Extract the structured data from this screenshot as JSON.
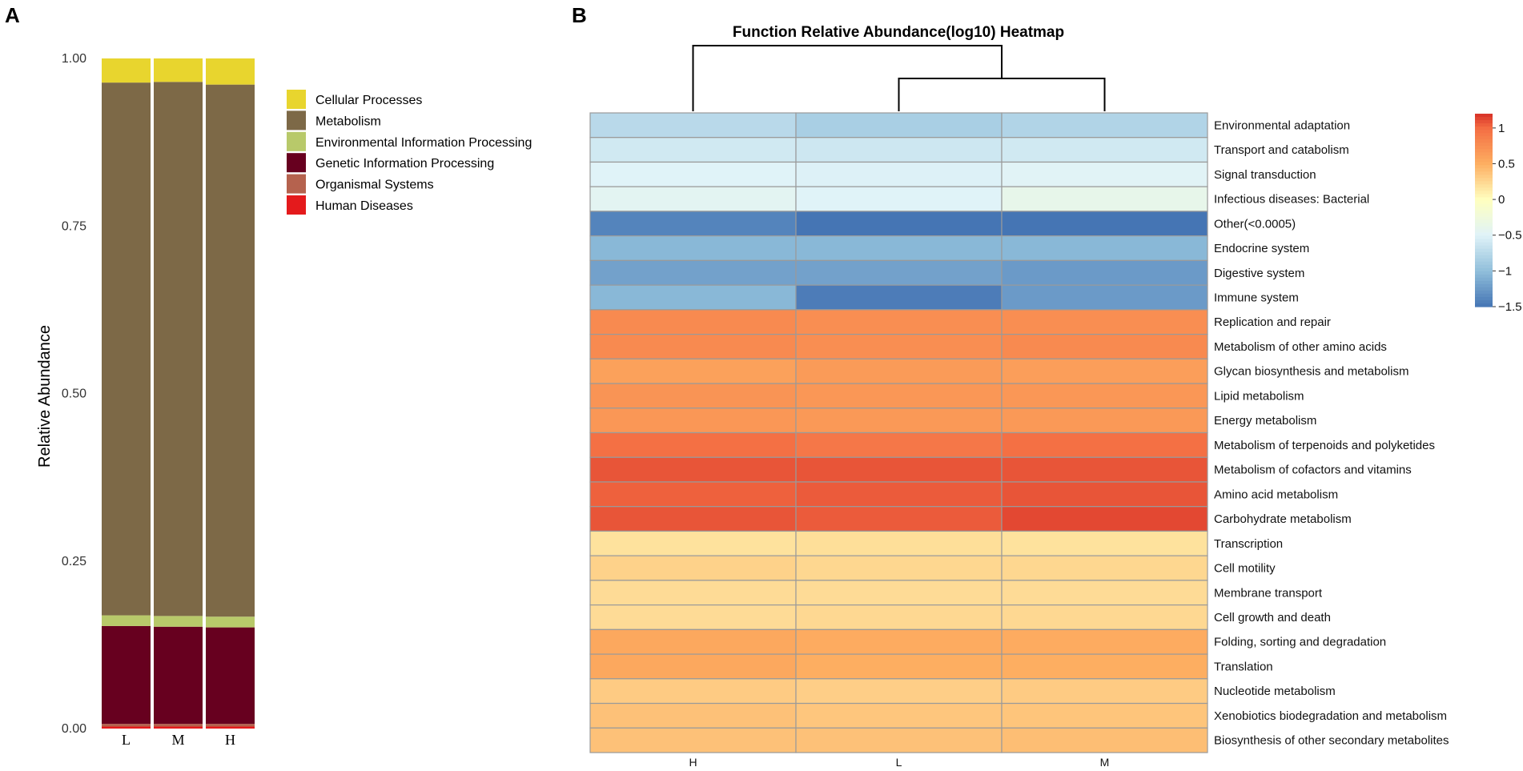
{
  "panels": {
    "a_label": "A",
    "b_label": "B"
  },
  "chart_data": [
    {
      "type": "bar",
      "stacked": true,
      "title": "",
      "xlabel": "",
      "ylabel": "Relative Abundance",
      "ylim": [
        0,
        1
      ],
      "yticks": [
        "0.00",
        "0.25",
        "0.50",
        "0.75",
        "1.00"
      ],
      "categories": [
        "L",
        "M",
        "H"
      ],
      "legend_position": "right",
      "series": [
        {
          "name": "Human Diseases",
          "color": "#E41A1C",
          "values": [
            0.003,
            0.003,
            0.003
          ]
        },
        {
          "name": "Organismal Systems",
          "color": "#B5624E",
          "values": [
            0.004,
            0.004,
            0.004
          ]
        },
        {
          "name": "Genetic Information Processing",
          "color": "#67001F",
          "values": [
            0.146,
            0.145,
            0.144
          ]
        },
        {
          "name": "Environmental Information Processing",
          "color": "#B8C96A",
          "values": [
            0.016,
            0.016,
            0.016
          ]
        },
        {
          "name": "Metabolism",
          "color": "#7D6947",
          "values": [
            0.795,
            0.797,
            0.794
          ]
        },
        {
          "name": "Cellular Processes",
          "color": "#E8D52E",
          "values": [
            0.036,
            0.035,
            0.039
          ]
        }
      ],
      "legend_order": [
        "Cellular Processes",
        "Metabolism",
        "Environmental Information Processing",
        "Genetic Information Processing",
        "Organismal Systems",
        "Human Diseases"
      ]
    },
    {
      "type": "heatmap",
      "title": "Function Relative Abundance(log10) Heatmap",
      "columns": [
        "H",
        "L",
        "M"
      ],
      "dendrogram": "H | (L, M)",
      "colorbar": {
        "min": -1.5,
        "max": 1.2,
        "ticks": [
          "1",
          "0.5",
          "0",
          "−0.5",
          "−1",
          "−1.5"
        ],
        "tick_values": [
          1,
          0.5,
          0,
          -0.5,
          -1,
          -1.5
        ]
      },
      "rows": [
        {
          "label": "Environmental adaptation",
          "values": [
            -0.75,
            -0.85,
            -0.8
          ]
        },
        {
          "label": "Transport and catabolism",
          "values": [
            -0.6,
            -0.62,
            -0.6
          ]
        },
        {
          "label": "Signal transduction",
          "values": [
            -0.5,
            -0.52,
            -0.48
          ]
        },
        {
          "label": "Infectious diseases: Bacterial",
          "values": [
            -0.45,
            -0.5,
            -0.38
          ]
        },
        {
          "label": "Other(<0.0005)",
          "values": [
            -1.4,
            -1.5,
            -1.5
          ]
        },
        {
          "label": "Endocrine system",
          "values": [
            -1.05,
            -1.05,
            -1.05
          ]
        },
        {
          "label": "Digestive system",
          "values": [
            -1.2,
            -1.2,
            -1.25
          ]
        },
        {
          "label": "Immune system",
          "values": [
            -1.05,
            -1.45,
            -1.25
          ]
        },
        {
          "label": "Replication and repair",
          "values": [
            0.78,
            0.75,
            0.75
          ]
        },
        {
          "label": "Metabolism of other amino acids",
          "values": [
            0.78,
            0.75,
            0.78
          ]
        },
        {
          "label": "Glycan biosynthesis and metabolism",
          "values": [
            0.6,
            0.65,
            0.62
          ]
        },
        {
          "label": "Lipid metabolism",
          "values": [
            0.7,
            0.68,
            0.68
          ]
        },
        {
          "label": "Energy metabolism",
          "values": [
            0.68,
            0.66,
            0.66
          ]
        },
        {
          "label": "Metabolism of terpenoids and polyketides",
          "values": [
            0.98,
            0.92,
            0.98
          ]
        },
        {
          "label": "Metabolism of cofactors and vitamins",
          "values": [
            1.08,
            1.08,
            1.08
          ]
        },
        {
          "label": "Amino acid metabolism",
          "values": [
            1.04,
            1.06,
            1.08
          ]
        },
        {
          "label": "Carbohydrate metabolism",
          "values": [
            1.08,
            1.06,
            1.12
          ]
        },
        {
          "label": "Transcription",
          "values": [
            0.18,
            0.2,
            0.18
          ]
        },
        {
          "label": "Cell motility",
          "values": [
            0.28,
            0.25,
            0.25
          ]
        },
        {
          "label": "Membrane transport",
          "values": [
            0.22,
            0.22,
            0.22
          ]
        },
        {
          "label": "Cell growth and death",
          "values": [
            0.22,
            0.24,
            0.24
          ]
        },
        {
          "label": "Folding, sorting and degradation",
          "values": [
            0.55,
            0.52,
            0.52
          ]
        },
        {
          "label": "Translation",
          "values": [
            0.55,
            0.5,
            0.5
          ]
        },
        {
          "label": "Nucleotide metabolism",
          "values": [
            0.32,
            0.3,
            0.32
          ]
        },
        {
          "label": "Xenobiotics biodegradation and metabolism",
          "values": [
            0.38,
            0.35,
            0.36
          ]
        },
        {
          "label": "Biosynthesis of other secondary metabolites",
          "values": [
            0.38,
            0.38,
            0.4
          ]
        }
      ]
    }
  ]
}
